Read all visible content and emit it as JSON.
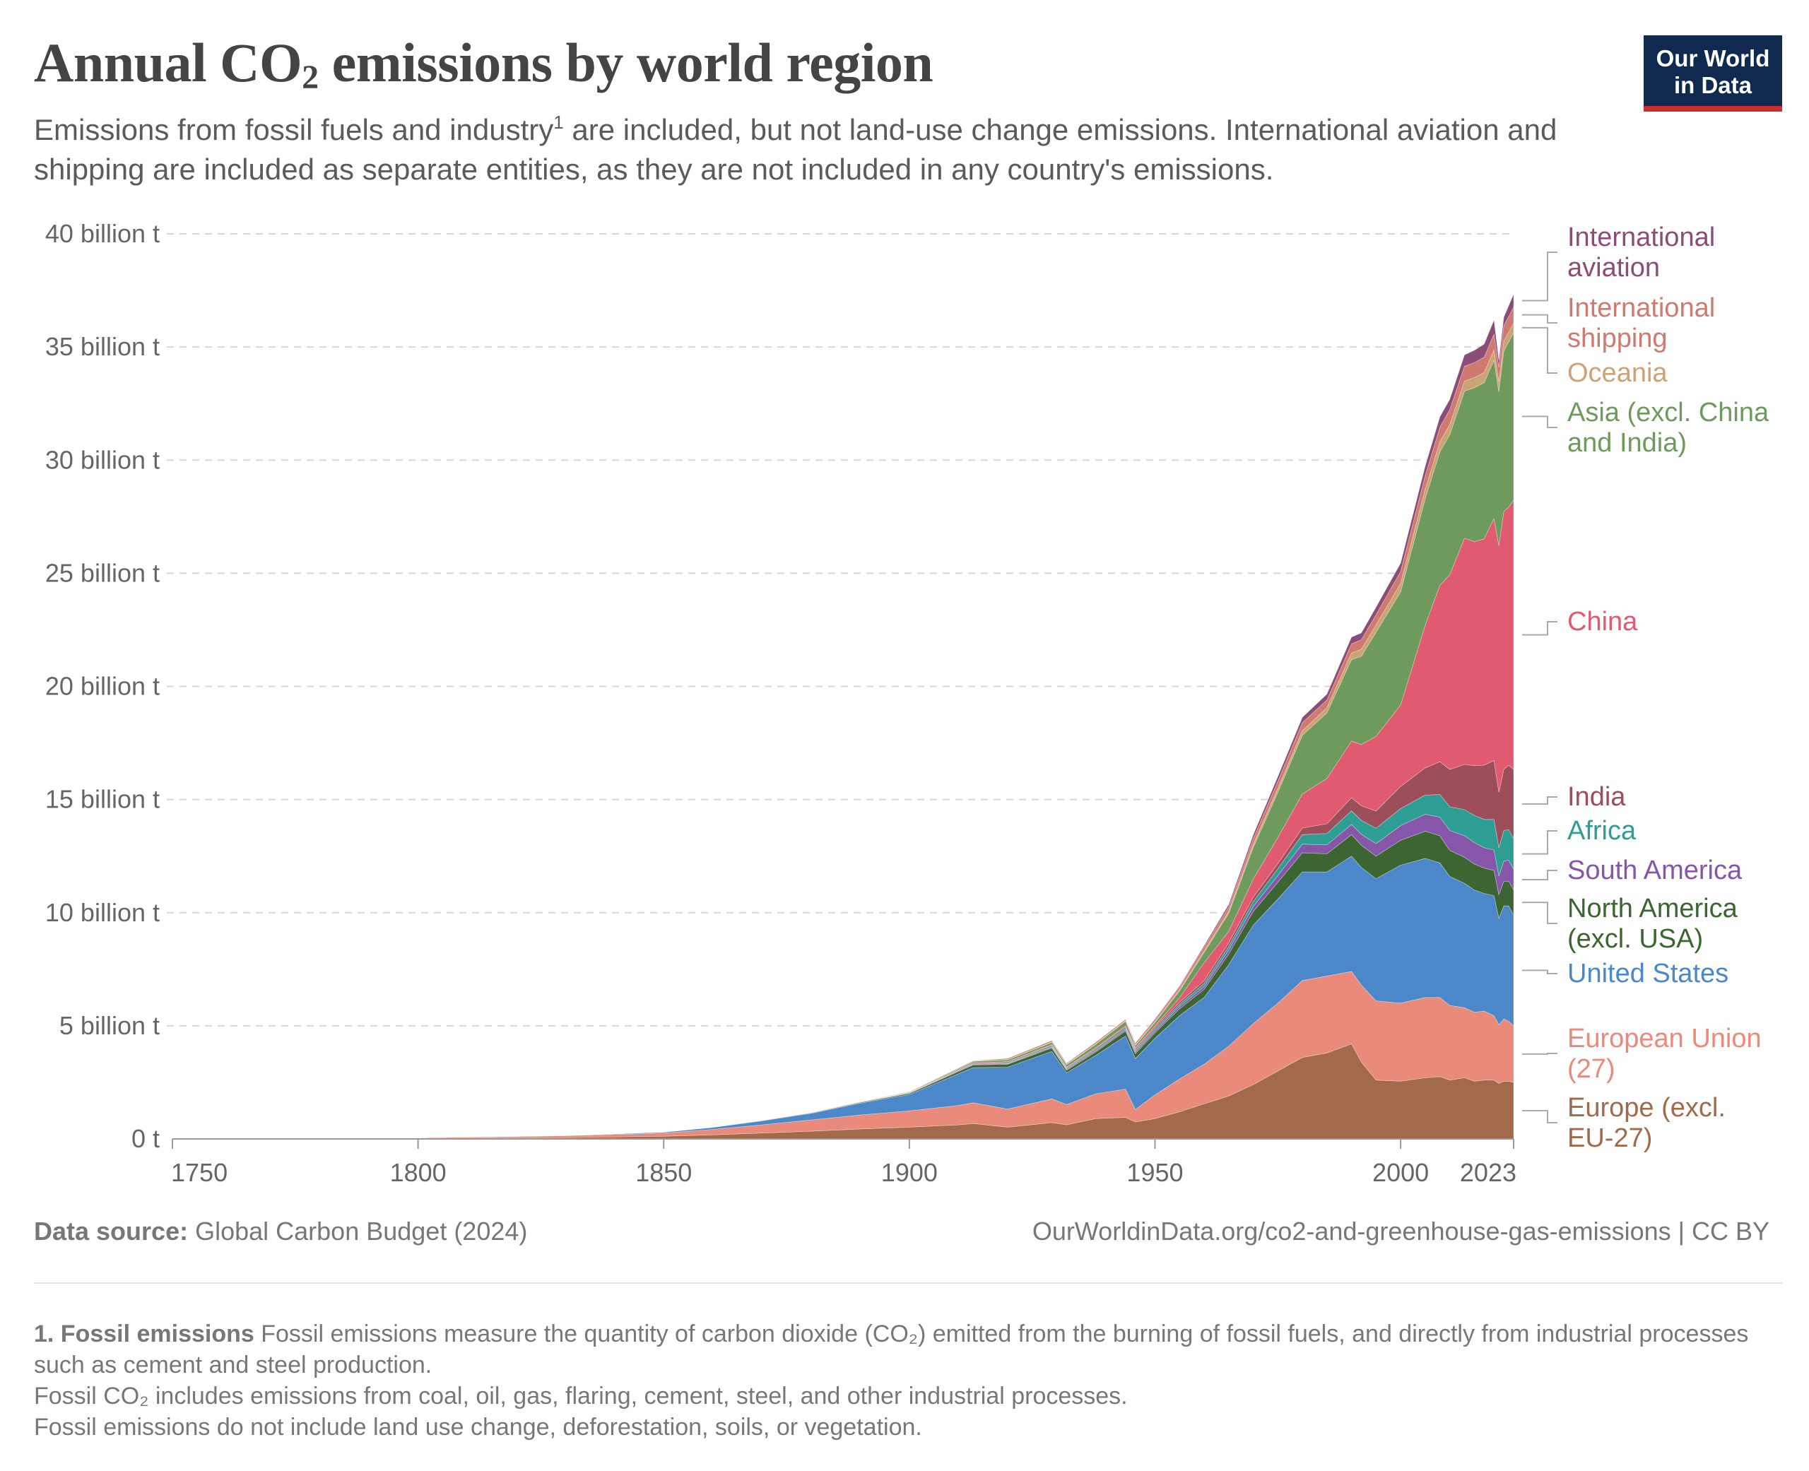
{
  "header": {
    "title_main": "Annual CO",
    "title_sub": "2",
    "title_rest": " emissions by world region",
    "subtitle_part1": "Emissions from fossil fuels and industry",
    "subtitle_sup": "1",
    "subtitle_part2": " are included, but not land-use change emissions. International aviation and shipping are included as separate entities, as they are not included in any country's emissions."
  },
  "logo": {
    "line1": "Our World",
    "line2": "in Data"
  },
  "footer": {
    "source_label": "Data source:",
    "source_text": " Global Carbon Budget (2024)",
    "url": "OurWorldinData.org/co2-and-greenhouse-gas-emissions | CC BY"
  },
  "footnotes": {
    "note1_label": "1. Fossil emissions",
    "note1_text": " Fossil emissions measure the quantity of carbon dioxide (CO₂) emitted from the burning of fossil fuels, and directly from industrial processes such as cement and steel production.",
    "note2": "Fossil CO₂ includes emissions from coal, oil, gas, flaring, cement, steel, and other industrial processes.",
    "note3": "Fossil emissions do not include land use change, deforestation, soils, or vegetation."
  },
  "chart_data": {
    "type": "area",
    "stacked": true,
    "title": "Annual CO₂ emissions by world region",
    "ylim": [
      0,
      40000000000
    ],
    "xlim": [
      1750,
      2023
    ],
    "y_ticks": [
      {
        "value": 0,
        "label": "0 t"
      },
      {
        "value": 5000000000,
        "label": "5 billion t"
      },
      {
        "value": 10000000000,
        "label": "10 billion t"
      },
      {
        "value": 15000000000,
        "label": "15 billion t"
      },
      {
        "value": 20000000000,
        "label": "20 billion t"
      },
      {
        "value": 25000000000,
        "label": "25 billion t"
      },
      {
        "value": 30000000000,
        "label": "30 billion t"
      },
      {
        "value": 35000000000,
        "label": "35 billion t"
      },
      {
        "value": 40000000000,
        "label": "40 billion t"
      }
    ],
    "x_ticks": [
      {
        "value": 1750,
        "label": "1750"
      },
      {
        "value": 1800,
        "label": "1800"
      },
      {
        "value": 1850,
        "label": "1850"
      },
      {
        "value": 1900,
        "label": "1900"
      },
      {
        "value": 1950,
        "label": "1950"
      },
      {
        "value": 2000,
        "label": "2000"
      },
      {
        "value": 2023,
        "label": "2023"
      }
    ],
    "grid": true,
    "legend_placement": "right",
    "x": [
      1750,
      1800,
      1830,
      1850,
      1860,
      1870,
      1880,
      1890,
      1900,
      1910,
      1913,
      1920,
      1929,
      1932,
      1938,
      1944,
      1946,
      1950,
      1955,
      1960,
      1965,
      1970,
      1975,
      1980,
      1985,
      1990,
      1992,
      1995,
      2000,
      2005,
      2008,
      2010,
      2013,
      2015,
      2017,
      2019,
      2020,
      2021,
      2022,
      2023
    ],
    "series": [
      {
        "name": "Europe (excl. EU-27)",
        "color": "#a2694b",
        "label_lines": [
          "Europe (excl.",
          "EU-27)"
        ],
        "values": [
          0.003,
          0.02,
          0.06,
          0.12,
          0.18,
          0.26,
          0.34,
          0.44,
          0.52,
          0.62,
          0.68,
          0.52,
          0.72,
          0.62,
          0.9,
          0.95,
          0.75,
          0.9,
          1.2,
          1.55,
          1.9,
          2.4,
          3.0,
          3.6,
          3.8,
          4.2,
          3.4,
          2.6,
          2.55,
          2.7,
          2.75,
          2.6,
          2.7,
          2.55,
          2.6,
          2.6,
          2.45,
          2.55,
          2.55,
          2.5
        ]
      },
      {
        "name": "European Union (27)",
        "color": "#ea8a7a",
        "label_lines": [
          "European Union",
          "(27)"
        ],
        "values": [
          0.006,
          0.03,
          0.08,
          0.14,
          0.24,
          0.36,
          0.5,
          0.62,
          0.72,
          0.86,
          0.92,
          0.8,
          1.05,
          0.9,
          1.1,
          1.25,
          0.55,
          1.05,
          1.45,
          1.75,
          2.2,
          2.7,
          3.0,
          3.4,
          3.4,
          3.2,
          3.4,
          3.5,
          3.45,
          3.55,
          3.5,
          3.3,
          3.1,
          3.05,
          3.05,
          2.85,
          2.6,
          2.75,
          2.65,
          2.5
        ]
      },
      {
        "name": "United States",
        "color": "#4c87c9",
        "label_lines": [
          "United States"
        ],
        "values": [
          0,
          0.001,
          0.01,
          0.04,
          0.09,
          0.18,
          0.29,
          0.52,
          0.72,
          1.4,
          1.55,
          1.85,
          2.1,
          1.4,
          1.7,
          2.35,
          2.25,
          2.5,
          2.8,
          2.95,
          3.6,
          4.35,
          4.6,
          4.8,
          4.6,
          5.1,
          5.2,
          5.4,
          6.1,
          6.15,
          5.95,
          5.7,
          5.5,
          5.4,
          5.2,
          5.3,
          4.7,
          5.0,
          5.1,
          4.9
        ]
      },
      {
        "name": "North America (excl. USA)",
        "color": "#3c6532",
        "label_lines": [
          "North America",
          "(excl. USA)"
        ],
        "values": [
          0,
          0,
          0.001,
          0.003,
          0.006,
          0.012,
          0.02,
          0.03,
          0.05,
          0.1,
          0.12,
          0.13,
          0.15,
          0.11,
          0.15,
          0.22,
          0.22,
          0.24,
          0.3,
          0.36,
          0.47,
          0.6,
          0.74,
          0.85,
          0.8,
          0.95,
          0.98,
          1.0,
          1.1,
          1.2,
          1.2,
          1.15,
          1.15,
          1.15,
          1.12,
          1.12,
          1.05,
          1.08,
          1.1,
          1.1
        ]
      },
      {
        "name": "South America",
        "color": "#8656a9",
        "label_lines": [
          "South America"
        ],
        "values": [
          0,
          0,
          0,
          0.001,
          0.002,
          0.003,
          0.005,
          0.008,
          0.014,
          0.03,
          0.03,
          0.03,
          0.04,
          0.04,
          0.05,
          0.06,
          0.07,
          0.08,
          0.1,
          0.13,
          0.17,
          0.22,
          0.3,
          0.38,
          0.4,
          0.45,
          0.48,
          0.55,
          0.65,
          0.75,
          0.82,
          0.88,
          0.95,
          0.95,
          0.9,
          0.9,
          0.82,
          0.9,
          0.92,
          0.92
        ]
      },
      {
        "name": "Africa",
        "color": "#2e9e95",
        "label_lines": [
          "Africa"
        ],
        "values": [
          0,
          0,
          0,
          0,
          0.001,
          0.002,
          0.004,
          0.006,
          0.01,
          0.02,
          0.025,
          0.03,
          0.04,
          0.04,
          0.05,
          0.06,
          0.07,
          0.08,
          0.1,
          0.13,
          0.17,
          0.22,
          0.3,
          0.42,
          0.5,
          0.6,
          0.62,
          0.68,
          0.75,
          0.85,
          1.0,
          1.05,
          1.15,
          1.2,
          1.25,
          1.35,
          1.25,
          1.35,
          1.35,
          1.35
        ]
      },
      {
        "name": "India",
        "color": "#9c4f5b",
        "label_lines": [
          "India"
        ],
        "values": [
          0,
          0,
          0,
          0.001,
          0.002,
          0.004,
          0.008,
          0.012,
          0.02,
          0.03,
          0.035,
          0.04,
          0.045,
          0.04,
          0.05,
          0.06,
          0.06,
          0.07,
          0.09,
          0.12,
          0.16,
          0.19,
          0.23,
          0.29,
          0.43,
          0.58,
          0.65,
          0.76,
          0.98,
          1.2,
          1.45,
          1.65,
          2.0,
          2.2,
          2.4,
          2.6,
          2.45,
          2.7,
          2.85,
          3.06
        ]
      },
      {
        "name": "China",
        "color": "#e05a70",
        "label_lines": [
          "China"
        ],
        "values": [
          0,
          0,
          0,
          0,
          0,
          0,
          0,
          0.001,
          0.001,
          0.006,
          0.008,
          0.015,
          0.025,
          0.03,
          0.04,
          0.05,
          0.06,
          0.08,
          0.2,
          0.8,
          0.5,
          0.8,
          1.15,
          1.5,
          2.0,
          2.5,
          2.7,
          3.3,
          3.6,
          6.3,
          7.8,
          8.6,
          10.0,
          9.9,
          10.0,
          10.7,
          10.9,
          11.4,
          11.4,
          11.9
        ]
      },
      {
        "name": "Asia (excl. China and India)",
        "color": "#6e9a5d",
        "label_lines": [
          "Asia (excl. China",
          "and India)"
        ],
        "values": [
          0,
          0,
          0,
          0,
          0.001,
          0.003,
          0.006,
          0.01,
          0.02,
          0.05,
          0.06,
          0.08,
          0.1,
          0.1,
          0.15,
          0.2,
          0.1,
          0.15,
          0.3,
          0.45,
          0.8,
          1.4,
          2.0,
          2.6,
          2.9,
          3.6,
          3.9,
          4.6,
          5.0,
          5.6,
          5.9,
          6.2,
          6.5,
          6.8,
          6.9,
          7.0,
          6.8,
          7.1,
          7.3,
          7.4
        ]
      },
      {
        "name": "Oceania",
        "color": "#cba375",
        "label_lines": [
          "Oceania"
        ],
        "values": [
          0,
          0,
          0,
          0,
          0,
          0,
          0.002,
          0.004,
          0.008,
          0.014,
          0.015,
          0.015,
          0.02,
          0.02,
          0.025,
          0.03,
          0.03,
          0.04,
          0.06,
          0.08,
          0.1,
          0.14,
          0.17,
          0.2,
          0.23,
          0.3,
          0.31,
          0.33,
          0.38,
          0.42,
          0.44,
          0.44,
          0.45,
          0.45,
          0.45,
          0.45,
          0.44,
          0.44,
          0.44,
          0.44
        ]
      },
      {
        "name": "International shipping",
        "color": "#cf7a70",
        "label_lines": [
          "International",
          "shipping"
        ],
        "values": [
          0,
          0,
          0,
          0,
          0,
          0,
          0,
          0,
          0.01,
          0.02,
          0.02,
          0.05,
          0.06,
          0.05,
          0.07,
          0.06,
          0.08,
          0.1,
          0.12,
          0.15,
          0.18,
          0.25,
          0.32,
          0.36,
          0.34,
          0.4,
          0.42,
          0.45,
          0.52,
          0.6,
          0.65,
          0.66,
          0.65,
          0.66,
          0.68,
          0.7,
          0.65,
          0.67,
          0.68,
          0.7
        ]
      },
      {
        "name": "International aviation",
        "color": "#8b4d77",
        "label_lines": [
          "International",
          "aviation"
        ],
        "values": [
          0,
          0,
          0,
          0,
          0,
          0,
          0,
          0,
          0,
          0,
          0,
          0,
          0,
          0,
          0,
          0,
          0,
          0.02,
          0.04,
          0.07,
          0.11,
          0.17,
          0.2,
          0.23,
          0.26,
          0.3,
          0.3,
          0.33,
          0.37,
          0.42,
          0.46,
          0.45,
          0.5,
          0.54,
          0.58,
          0.62,
          0.3,
          0.38,
          0.48,
          0.56
        ]
      }
    ],
    "value_unit_in_series": "billion t"
  }
}
